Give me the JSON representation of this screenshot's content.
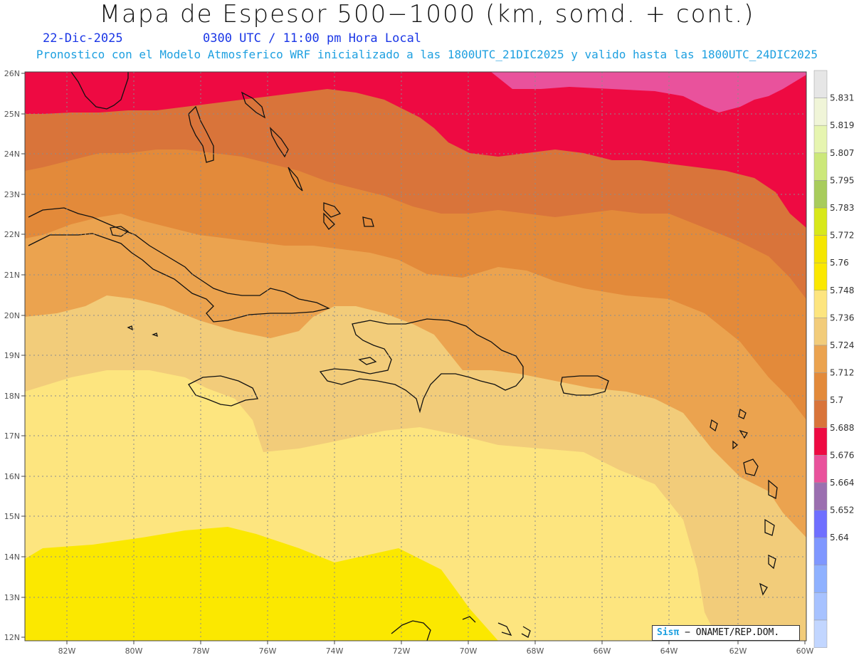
{
  "header": {
    "title": "Mapa de Espesor 500−1000 (km, somd. + cont.)",
    "date": "22-Dic-2025",
    "time": "0300 UTC / 11:00 pm Hora Local",
    "subtitle": "Pronostico con el Modelo Atmosferico WRF inicializado a las 1800UTC_21DIC2025 y valido hasta las  1800UTC_24DIC2025"
  },
  "map": {
    "lat_labels": [
      "26N",
      "25N",
      "24N",
      "23N",
      "22N",
      "21N",
      "20N",
      "19N",
      "18N",
      "17N",
      "16N",
      "15N",
      "14N",
      "13N",
      "12N"
    ],
    "lon_labels": [
      "82W",
      "80W",
      "78W",
      "76W",
      "74W",
      "72W",
      "70W",
      "68W",
      "66W",
      "64W",
      "62W",
      "60W"
    ],
    "thickness_bands_km": [
      {
        "level": "5.7",
        "color": "#ee0a42"
      },
      {
        "level": "5.712",
        "color": "#d9743a"
      },
      {
        "level": "5.724",
        "color": "#e38a3a"
      },
      {
        "level": "5.736",
        "color": "#eba34f"
      },
      {
        "level": "5.748",
        "color": "#f2cc7a"
      },
      {
        "level": "5.76",
        "color": "#fde57f"
      },
      {
        "level": "5.772",
        "color": "#fbe800"
      },
      {
        "level": "5.688",
        "color": "#e9529c"
      }
    ]
  },
  "colorbar": {
    "colors": [
      "#e6e6e6",
      "#f0f5d8",
      "#e6f5b0",
      "#cce87a",
      "#a8cc5c",
      "#d8e81a",
      "#f5e600",
      "#fbe800",
      "#fde57f",
      "#f2cc7a",
      "#eba34f",
      "#e38a3a",
      "#d9743a",
      "#ee0a42",
      "#e9529c",
      "#9b6fb0",
      "#6f6fff",
      "#7f97ff",
      "#8fb1ff",
      "#a7c2ff",
      "#c2d6ff"
    ],
    "labels": [
      "5.831",
      "5.819",
      "5.807",
      "5.795",
      "5.783",
      "5.772",
      "5.76",
      "5.748",
      "5.736",
      "5.724",
      "5.712",
      "5.7",
      "5.688",
      "5.676",
      "5.664",
      "5.652",
      "5.64"
    ]
  },
  "credit": {
    "brand": "Sisπ",
    "text": " − ONAMET/REP.DOM."
  }
}
